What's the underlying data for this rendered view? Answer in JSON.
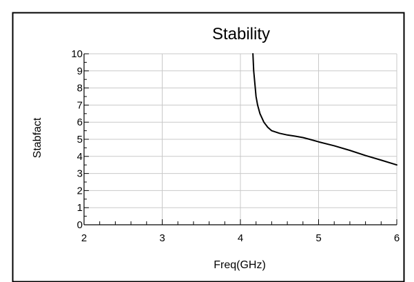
{
  "chart_data": {
    "type": "line",
    "title": "Stability",
    "xlabel": "Freq(GHz)",
    "ylabel": "Stabfact",
    "xlim": [
      2,
      6
    ],
    "ylim": [
      0,
      10
    ],
    "x_ticks": [
      2,
      3,
      4,
      5,
      6
    ],
    "y_ticks": [
      0,
      1,
      2,
      3,
      4,
      5,
      6,
      7,
      8,
      9,
      10
    ],
    "x_tick_labels": [
      "2",
      "3",
      "4",
      "5",
      "6"
    ],
    "y_tick_labels": [
      "0",
      "1",
      "2",
      "3",
      "4",
      "5",
      "6",
      "7",
      "8",
      "9",
      "10"
    ],
    "grid": true,
    "series": [
      {
        "color": "#000000",
        "x": [
          4.16,
          4.17,
          4.19,
          4.2,
          4.22,
          4.25,
          4.3,
          4.35,
          4.4,
          4.5,
          4.6,
          4.7,
          4.8,
          4.9,
          5.0,
          5.2,
          5.4,
          5.6,
          5.8,
          6.0
        ],
        "y": [
          10.0,
          9.0,
          8.0,
          7.5,
          7.0,
          6.5,
          6.0,
          5.7,
          5.5,
          5.35,
          5.25,
          5.18,
          5.1,
          4.98,
          4.85,
          4.62,
          4.35,
          4.05,
          3.78,
          3.5
        ]
      }
    ]
  },
  "colors": {
    "background": "#ffffff",
    "border": "#000000",
    "grid": "#c8c8c8",
    "axis": "#000000",
    "line": "#000000"
  }
}
